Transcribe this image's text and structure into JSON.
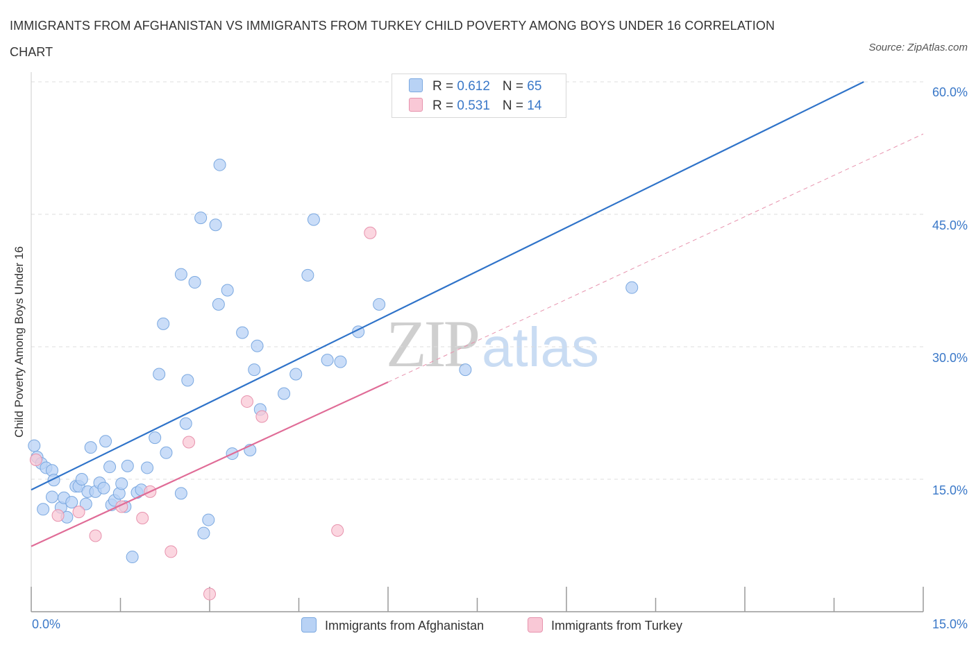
{
  "title": "IMMIGRANTS FROM AFGHANISTAN VS IMMIGRANTS FROM TURKEY CHILD POVERTY AMONG BOYS UNDER 16 CORRELATION CHART",
  "source": "Source: ZipAtlas.com",
  "watermark": {
    "zip": "ZIP",
    "atlas": "atlas"
  },
  "legend": {
    "r_label": "R = ",
    "n_label": "N = ",
    "afghanistan": {
      "r": "0.612",
      "n": "65"
    },
    "turkey": {
      "r": "0.531",
      "n": "14"
    }
  },
  "colors": {
    "afghanistan_fill": "#b8d2f5",
    "afghanistan_stroke": "#7aa8e0",
    "afghanistan_line": "#2f73c9",
    "turkey_fill": "#f9c8d6",
    "turkey_stroke": "#e792ad",
    "turkey_line": "#e06c97",
    "tick_text": "#3a78c8",
    "grid": "#dcdcdc"
  },
  "chart_data": {
    "type": "scatter",
    "title": "IMMIGRANTS FROM AFGHANISTAN VS IMMIGRANTS FROM TURKEY CHILD POVERTY AMONG BOYS UNDER 16 CORRELATION CHART",
    "xlabel": "",
    "ylabel": "Child Poverty Among Boys Under 16",
    "xlim": [
      0,
      15
    ],
    "ylim": [
      0,
      60
    ],
    "x_tick_labels": [
      {
        "value": 0,
        "label": "0.0%"
      },
      {
        "value": 15,
        "label": "15.0%"
      }
    ],
    "y_tick_labels": [
      {
        "value": 15,
        "label": "15.0%"
      },
      {
        "value": 30,
        "label": "30.0%"
      },
      {
        "value": 45,
        "label": "45.0%"
      },
      {
        "value": 60,
        "label": "60.0%"
      }
    ],
    "grid": true,
    "legend_placement": "top-center",
    "series": [
      {
        "name": "Immigrants from Afghanistan",
        "points": [
          [
            0.05,
            18.8
          ],
          [
            0.1,
            17.5
          ],
          [
            0.17,
            16.8
          ],
          [
            0.25,
            16.3
          ],
          [
            0.35,
            16.0
          ],
          [
            0.2,
            11.6
          ],
          [
            0.35,
            13.0
          ],
          [
            0.38,
            14.9
          ],
          [
            0.5,
            11.8
          ],
          [
            0.55,
            12.9
          ],
          [
            0.6,
            10.7
          ],
          [
            0.68,
            12.4
          ],
          [
            0.75,
            14.2
          ],
          [
            0.8,
            14.2
          ],
          [
            0.85,
            15.0
          ],
          [
            0.92,
            12.2
          ],
          [
            0.95,
            13.6
          ],
          [
            1.0,
            18.6
          ],
          [
            1.08,
            13.6
          ],
          [
            1.15,
            14.6
          ],
          [
            1.22,
            14.0
          ],
          [
            1.25,
            19.3
          ],
          [
            1.32,
            16.4
          ],
          [
            1.35,
            12.1
          ],
          [
            1.4,
            12.6
          ],
          [
            1.48,
            13.4
          ],
          [
            1.52,
            14.5
          ],
          [
            1.58,
            11.9
          ],
          [
            1.62,
            16.5
          ],
          [
            1.7,
            6.2
          ],
          [
            1.78,
            13.5
          ],
          [
            1.85,
            13.8
          ],
          [
            1.95,
            16.3
          ],
          [
            2.08,
            19.7
          ],
          [
            2.15,
            26.9
          ],
          [
            2.22,
            32.6
          ],
          [
            2.27,
            18.0
          ],
          [
            2.52,
            13.4
          ],
          [
            2.52,
            38.2
          ],
          [
            2.6,
            21.3
          ],
          [
            2.63,
            26.2
          ],
          [
            2.75,
            37.3
          ],
          [
            2.85,
            44.6
          ],
          [
            2.9,
            8.9
          ],
          [
            2.98,
            10.4
          ],
          [
            3.1,
            43.8
          ],
          [
            3.15,
            34.8
          ],
          [
            3.17,
            50.6
          ],
          [
            3.3,
            36.4
          ],
          [
            3.38,
            17.9
          ],
          [
            3.55,
            31.6
          ],
          [
            3.68,
            18.3
          ],
          [
            3.75,
            27.4
          ],
          [
            3.8,
            30.1
          ],
          [
            3.85,
            22.9
          ],
          [
            4.25,
            24.7
          ],
          [
            4.45,
            26.9
          ],
          [
            4.65,
            38.1
          ],
          [
            4.75,
            44.4
          ],
          [
            4.98,
            28.5
          ],
          [
            5.2,
            28.3
          ],
          [
            5.5,
            31.7
          ],
          [
            5.85,
            34.8
          ],
          [
            7.3,
            27.4
          ],
          [
            10.1,
            36.7
          ]
        ],
        "trend": {
          "x": [
            0,
            14.0
          ],
          "y": [
            13.8,
            60.0
          ]
        }
      },
      {
        "name": "Immigrants from Turkey",
        "points": [
          [
            0.08,
            17.2
          ],
          [
            0.45,
            10.9
          ],
          [
            0.8,
            11.3
          ],
          [
            1.08,
            8.6
          ],
          [
            1.52,
            11.9
          ],
          [
            1.87,
            10.6
          ],
          [
            2.0,
            13.6
          ],
          [
            2.35,
            6.8
          ],
          [
            2.65,
            19.2
          ],
          [
            3.0,
            2.0
          ],
          [
            3.63,
            23.8
          ],
          [
            3.88,
            22.1
          ],
          [
            5.15,
            9.2
          ],
          [
            5.7,
            42.9
          ]
        ],
        "trend": {
          "x": [
            0,
            6.0
          ],
          "y": [
            7.4,
            26.0
          ]
        },
        "trend_extension": {
          "x": [
            6.0,
            15.0
          ],
          "y": [
            26.0,
            54.1
          ]
        }
      }
    ]
  }
}
